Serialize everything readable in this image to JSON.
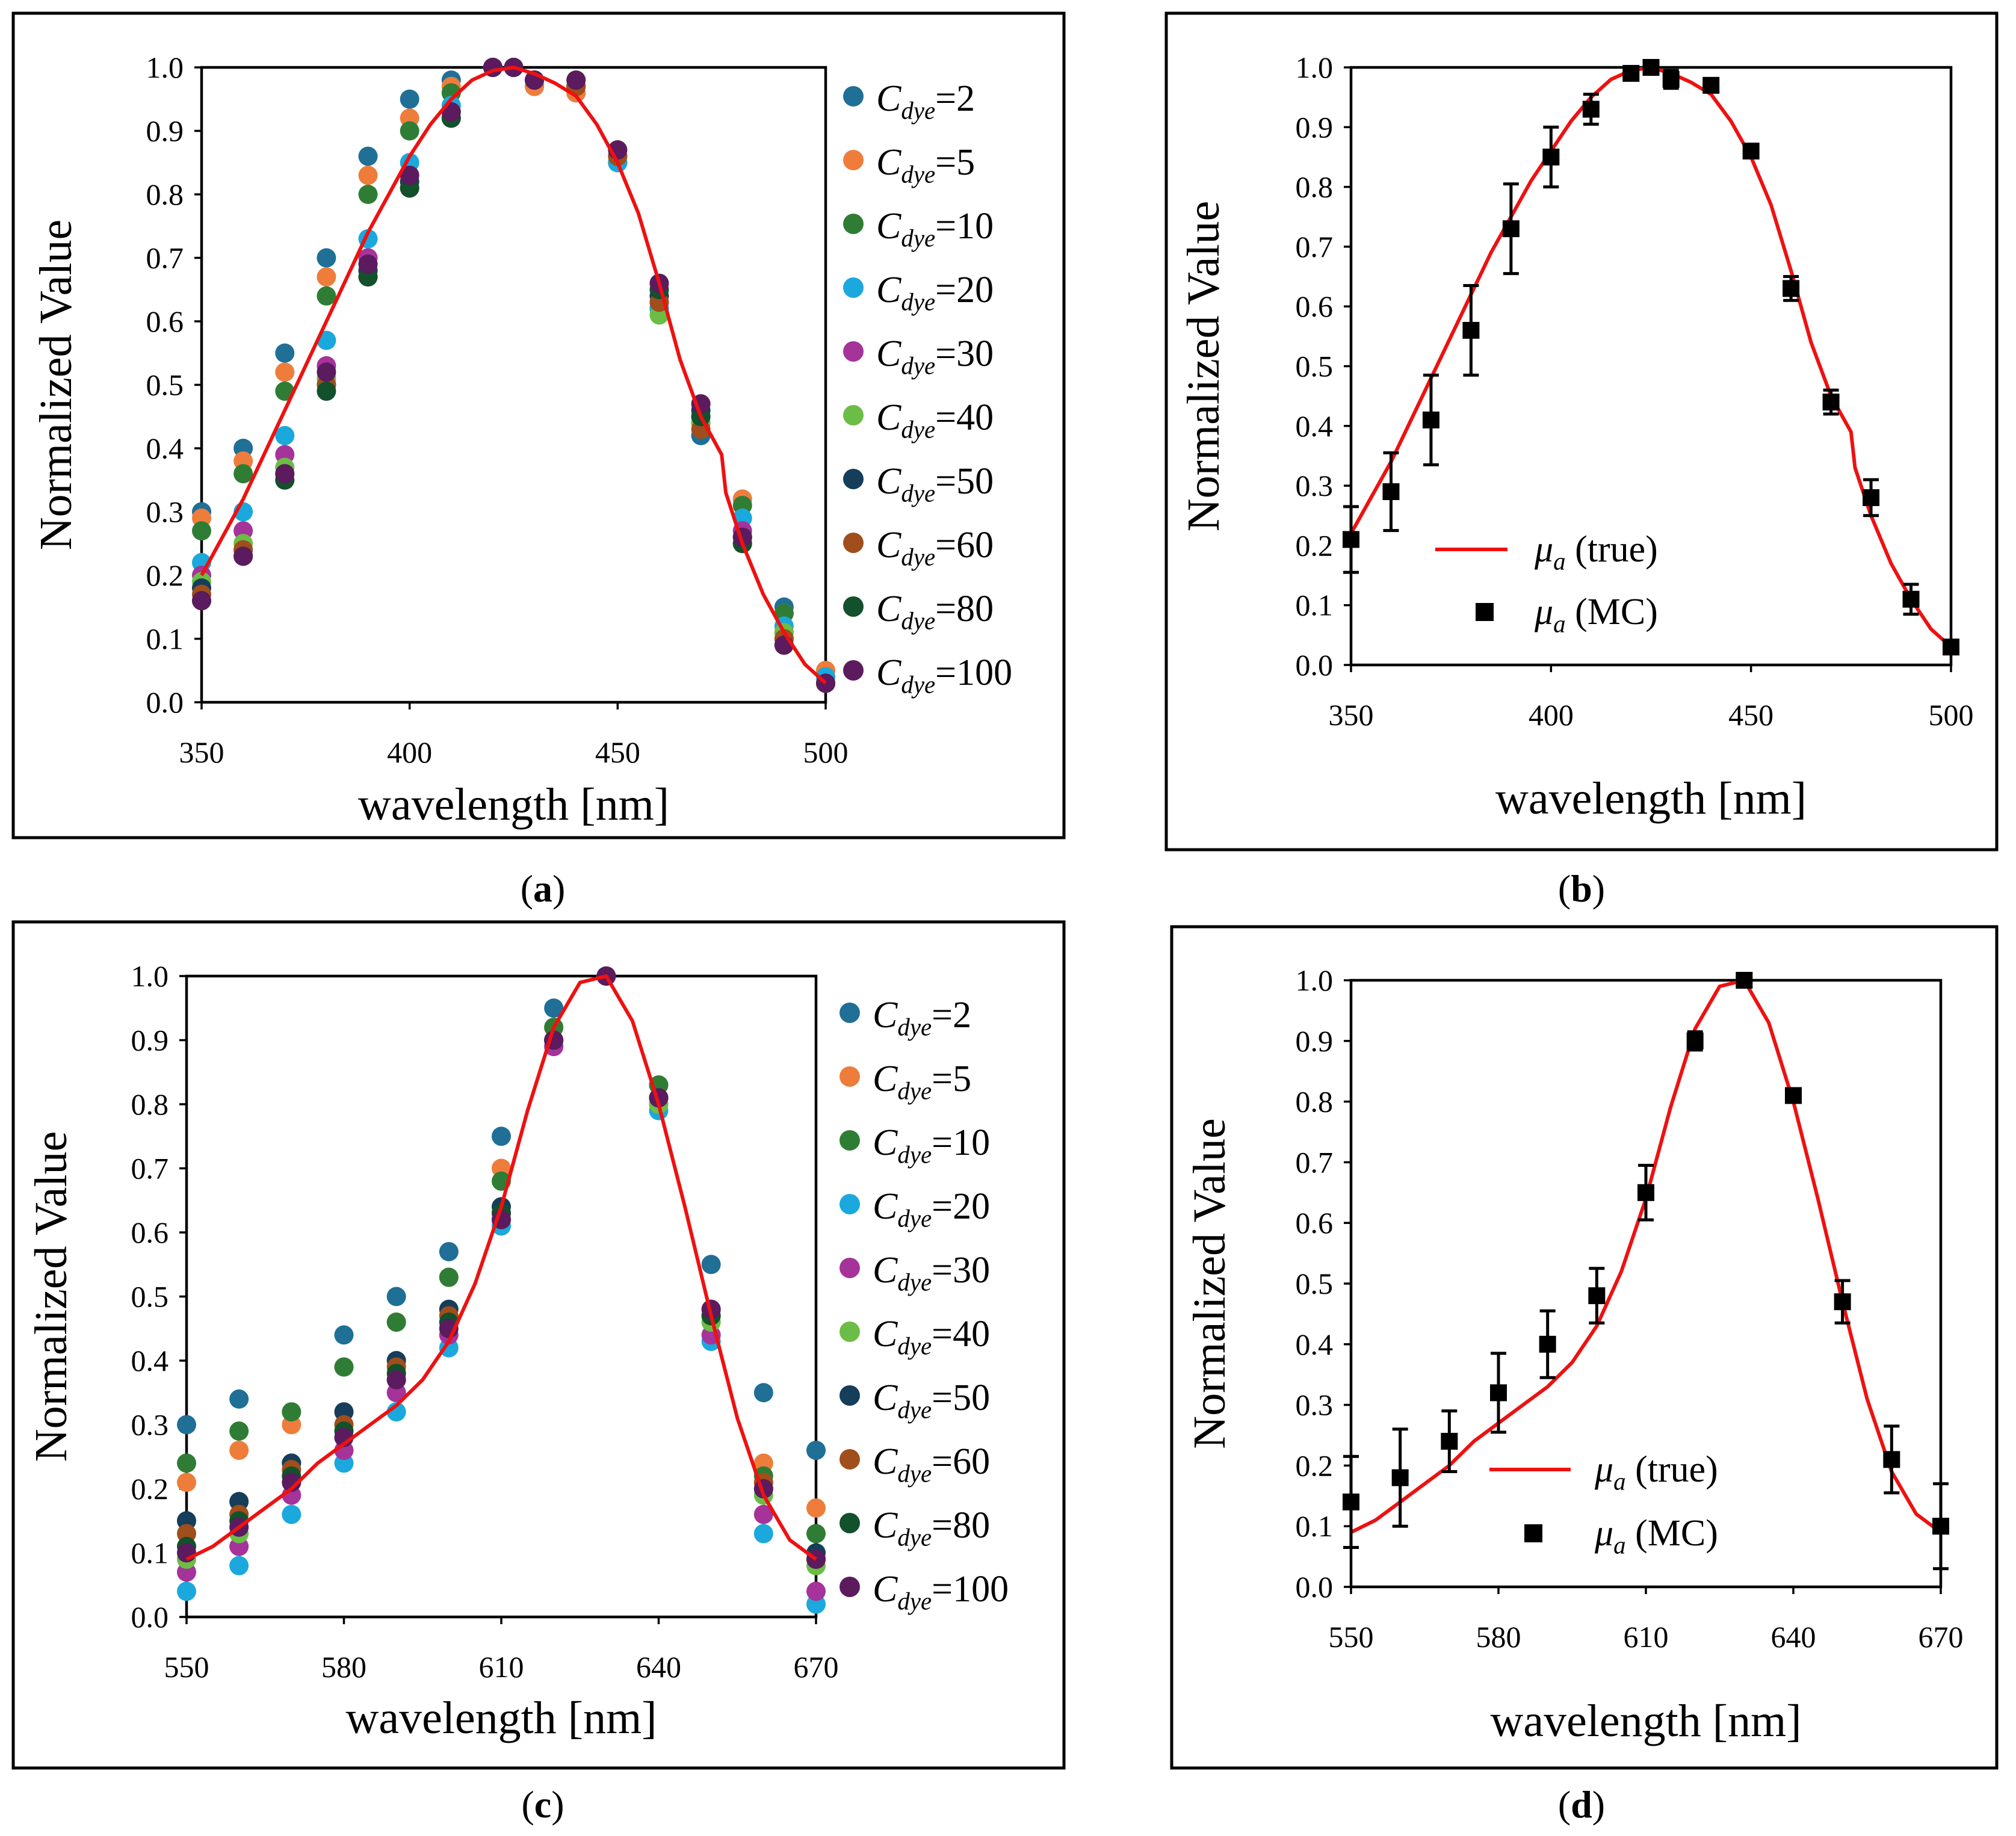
{
  "colors": {
    "true_curve": "#ee1111",
    "mc_marker": "#000000",
    "cdye": [
      "#1f6f96",
      "#ee7d3c",
      "#2f7d35",
      "#1ba8dd",
      "#a5339a",
      "#6cbd45",
      "#163d5a",
      "#a04e1b",
      "#13502c",
      "#5b1b5e"
    ]
  },
  "legend_cdye": {
    "symbol": "C",
    "subscript": "dye",
    "labels": [
      "=2",
      "=5",
      "=10",
      "=20",
      "=30",
      "=40",
      "=50",
      "=60",
      "=80",
      "=100"
    ]
  },
  "legend_mc": {
    "symbol": "μ",
    "subscript": "a",
    "true_label": " (true)",
    "mc_label": " (MC)"
  },
  "chart_data": [
    {
      "panel": "a",
      "caption": "a",
      "type": "scatter",
      "ylabel": "Normalized Value",
      "xlabel": "wavelength [nm]",
      "xlim": [
        350,
        500
      ],
      "ylim": [
        0,
        1
      ],
      "xticks": [
        "350",
        "400",
        "450",
        "500"
      ],
      "yticks": [
        "0.0",
        "0.1",
        "0.2",
        "0.3",
        "0.4",
        "0.5",
        "0.6",
        "0.7",
        "0.8",
        "0.9",
        "1.0"
      ],
      "x": [
        350,
        360,
        370,
        380,
        390,
        400,
        410,
        420,
        425,
        430,
        440,
        450,
        460,
        470,
        480,
        490,
        500
      ],
      "series": [
        {
          "name": "Cdye=2",
          "values": [
            0.3,
            0.4,
            0.55,
            0.7,
            0.86,
            0.95,
            0.98,
            1.0,
            1.0,
            0.97,
            0.96,
            0.85,
            0.62,
            0.42,
            0.32,
            0.15,
            0.05
          ]
        },
        {
          "name": "Cdye=5",
          "values": [
            0.29,
            0.38,
            0.52,
            0.67,
            0.83,
            0.92,
            0.97,
            1.0,
            1.0,
            0.97,
            0.96,
            0.85,
            0.62,
            0.47,
            0.32,
            0.14,
            0.05
          ]
        },
        {
          "name": "Cdye=10",
          "values": [
            0.27,
            0.36,
            0.49,
            0.64,
            0.8,
            0.9,
            0.96,
            1.0,
            1.0,
            0.98,
            0.97,
            0.85,
            0.62,
            0.45,
            0.31,
            0.14,
            0.04
          ]
        },
        {
          "name": "Cdye=20",
          "values": [
            0.22,
            0.3,
            0.42,
            0.57,
            0.73,
            0.85,
            0.94,
            1.0,
            1.0,
            0.98,
            0.97,
            0.85,
            0.62,
            0.45,
            0.29,
            0.12,
            0.04
          ]
        },
        {
          "name": "Cdye=30",
          "values": [
            0.2,
            0.27,
            0.39,
            0.53,
            0.7,
            0.83,
            0.93,
            1.0,
            1.0,
            0.98,
            0.97,
            0.86,
            0.63,
            0.44,
            0.27,
            0.11,
            0.03
          ]
        },
        {
          "name": "Cdye=40",
          "values": [
            0.19,
            0.25,
            0.37,
            0.51,
            0.68,
            0.82,
            0.93,
            1.0,
            1.0,
            0.98,
            0.97,
            0.86,
            0.61,
            0.44,
            0.26,
            0.11,
            0.03
          ]
        },
        {
          "name": "Cdye=50",
          "values": [
            0.18,
            0.24,
            0.36,
            0.5,
            0.68,
            0.82,
            0.92,
            1.0,
            1.0,
            0.98,
            0.97,
            0.86,
            0.64,
            0.46,
            0.26,
            0.1,
            0.03
          ]
        },
        {
          "name": "Cdye=60",
          "values": [
            0.17,
            0.24,
            0.35,
            0.5,
            0.67,
            0.81,
            0.92,
            1.0,
            1.0,
            0.98,
            0.97,
            0.86,
            0.63,
            0.43,
            0.25,
            0.1,
            0.03
          ]
        },
        {
          "name": "Cdye=80",
          "values": [
            0.16,
            0.23,
            0.35,
            0.49,
            0.67,
            0.81,
            0.92,
            1.0,
            1.0,
            0.98,
            0.98,
            0.87,
            0.65,
            0.45,
            0.25,
            0.09,
            0.03
          ]
        },
        {
          "name": "Cdye=100",
          "values": [
            0.16,
            0.23,
            0.36,
            0.52,
            0.69,
            0.83,
            0.93,
            1.0,
            1.0,
            0.98,
            0.98,
            0.87,
            0.66,
            0.47,
            0.26,
            0.09,
            0.03
          ]
        }
      ],
      "true_curve": {
        "name": "μa (true)",
        "x": [
          350,
          355,
          360,
          365,
          370,
          375,
          380,
          385,
          390,
          395,
          400,
          405,
          410,
          415,
          420,
          425,
          430,
          435,
          440,
          445,
          450,
          455,
          460,
          465,
          470,
          475,
          476,
          480,
          485,
          490,
          495,
          500
        ],
        "y": [
          0.2,
          0.26,
          0.32,
          0.39,
          0.46,
          0.53,
          0.6,
          0.67,
          0.74,
          0.8,
          0.86,
          0.91,
          0.95,
          0.98,
          0.995,
          1.0,
          0.99,
          0.975,
          0.955,
          0.91,
          0.85,
          0.77,
          0.66,
          0.54,
          0.45,
          0.39,
          0.33,
          0.25,
          0.17,
          0.11,
          0.06,
          0.03
        ]
      }
    },
    {
      "panel": "b",
      "caption": "b",
      "type": "scatter",
      "ylabel": "Normalized Value",
      "xlabel": "wavelength [nm]",
      "xlim": [
        350,
        500
      ],
      "ylim": [
        0,
        1
      ],
      "xticks": [
        "350",
        "400",
        "450",
        "500"
      ],
      "yticks": [
        "0.0",
        "0.1",
        "0.2",
        "0.3",
        "0.4",
        "0.5",
        "0.6",
        "0.7",
        "0.8",
        "0.9",
        "1.0"
      ],
      "mc": {
        "name": "μa (MC)",
        "x": [
          350,
          360,
          370,
          380,
          390,
          400,
          410,
          420,
          425,
          430,
          440,
          450,
          460,
          470,
          480,
          490,
          500
        ],
        "y": [
          0.21,
          0.29,
          0.41,
          0.56,
          0.73,
          0.85,
          0.93,
          0.99,
          1.0,
          0.98,
          0.97,
          0.86,
          0.63,
          0.44,
          0.28,
          0.11,
          0.03
        ],
        "err": [
          0.055,
          0.065,
          0.075,
          0.075,
          0.075,
          0.05,
          0.025,
          0.01,
          0.008,
          0.015,
          0.01,
          0.008,
          0.02,
          0.02,
          0.03,
          0.025,
          0.005
        ]
      },
      "true_curve": {
        "name": "μa (true)",
        "x": [
          350,
          355,
          360,
          365,
          370,
          375,
          380,
          385,
          390,
          395,
          400,
          405,
          410,
          415,
          420,
          425,
          430,
          435,
          440,
          445,
          450,
          455,
          460,
          465,
          470,
          475,
          476,
          480,
          485,
          490,
          495,
          500
        ],
        "y": [
          0.22,
          0.28,
          0.34,
          0.41,
          0.48,
          0.55,
          0.62,
          0.69,
          0.75,
          0.81,
          0.86,
          0.91,
          0.95,
          0.98,
          0.995,
          1.0,
          0.99,
          0.975,
          0.955,
          0.91,
          0.85,
          0.77,
          0.66,
          0.54,
          0.45,
          0.39,
          0.33,
          0.25,
          0.17,
          0.11,
          0.06,
          0.03
        ]
      }
    },
    {
      "panel": "c",
      "caption": "c",
      "type": "scatter",
      "ylabel": "Normalized Value",
      "xlabel": "wavelength [nm]",
      "xlim": [
        550,
        670
      ],
      "ylim": [
        0,
        1
      ],
      "xticks": [
        "550",
        "580",
        "610",
        "640",
        "670"
      ],
      "yticks": [
        "0.0",
        "0.1",
        "0.2",
        "0.3",
        "0.4",
        "0.5",
        "0.6",
        "0.7",
        "0.8",
        "0.9",
        "1.0"
      ],
      "x": [
        550,
        560,
        570,
        580,
        590,
        600,
        610,
        620,
        630,
        640,
        650,
        660,
        670
      ],
      "series": [
        {
          "name": "Cdye=2",
          "values": [
            0.3,
            0.34,
            0.24,
            0.44,
            0.5,
            0.57,
            0.75,
            0.95,
            1.0,
            0.83,
            0.55,
            0.35,
            0.26
          ]
        },
        {
          "name": "Cdye=5",
          "values": [
            0.21,
            0.26,
            0.3,
            0.39,
            0.46,
            0.53,
            0.7,
            0.92,
            1.0,
            0.83,
            0.48,
            0.24,
            0.17
          ]
        },
        {
          "name": "Cdye=10",
          "values": [
            0.24,
            0.29,
            0.32,
            0.39,
            0.46,
            0.53,
            0.68,
            0.92,
            1.0,
            0.83,
            0.47,
            0.22,
            0.13
          ]
        },
        {
          "name": "Cdye=20",
          "values": [
            0.04,
            0.08,
            0.16,
            0.24,
            0.32,
            0.42,
            0.61,
            0.89,
            1.0,
            0.79,
            0.43,
            0.13,
            0.02
          ]
        },
        {
          "name": "Cdye=30",
          "values": [
            0.07,
            0.11,
            0.19,
            0.26,
            0.35,
            0.44,
            0.62,
            0.89,
            1.0,
            0.8,
            0.44,
            0.16,
            0.04
          ]
        },
        {
          "name": "Cdye=40",
          "values": [
            0.09,
            0.13,
            0.21,
            0.28,
            0.37,
            0.46,
            0.62,
            0.9,
            1.0,
            0.8,
            0.46,
            0.19,
            0.08
          ]
        },
        {
          "name": "Cdye=50",
          "values": [
            0.15,
            0.18,
            0.24,
            0.32,
            0.4,
            0.48,
            0.64,
            0.9,
            1.0,
            0.81,
            0.48,
            0.2,
            0.1
          ]
        },
        {
          "name": "Cdye=60",
          "values": [
            0.13,
            0.16,
            0.23,
            0.3,
            0.39,
            0.47,
            0.63,
            0.9,
            1.0,
            0.81,
            0.47,
            0.21,
            0.09
          ]
        },
        {
          "name": "Cdye=80",
          "values": [
            0.11,
            0.15,
            0.22,
            0.29,
            0.38,
            0.46,
            0.63,
            0.9,
            1.0,
            0.81,
            0.47,
            0.2,
            0.09
          ]
        },
        {
          "name": "Cdye=100",
          "values": [
            0.1,
            0.14,
            0.21,
            0.28,
            0.37,
            0.45,
            0.62,
            0.9,
            1.0,
            0.81,
            0.48,
            0.2,
            0.09
          ]
        }
      ],
      "true_curve": {
        "name": "μa (true)",
        "x": [
          550,
          555,
          560,
          565,
          570,
          575,
          580,
          585,
          590,
          595,
          600,
          605,
          610,
          615,
          620,
          625,
          630,
          635,
          640,
          645,
          650,
          655,
          660,
          665,
          670
        ],
        "y": [
          0.09,
          0.11,
          0.14,
          0.17,
          0.2,
          0.24,
          0.27,
          0.3,
          0.33,
          0.37,
          0.43,
          0.52,
          0.64,
          0.79,
          0.92,
          0.99,
          1.0,
          0.93,
          0.8,
          0.64,
          0.47,
          0.31,
          0.19,
          0.12,
          0.09
        ]
      }
    },
    {
      "panel": "d",
      "caption": "d",
      "type": "scatter",
      "ylabel": "Normalized Value",
      "xlabel": "wavelength [nm]",
      "xlim": [
        550,
        670
      ],
      "ylim": [
        0,
        1
      ],
      "xticks": [
        "550",
        "580",
        "610",
        "640",
        "670"
      ],
      "yticks": [
        "0.0",
        "0.1",
        "0.2",
        "0.3",
        "0.4",
        "0.5",
        "0.6",
        "0.7",
        "0.8",
        "0.9",
        "1.0"
      ],
      "mc": {
        "name": "μa (MC)",
        "x": [
          550,
          560,
          570,
          580,
          590,
          600,
          610,
          620,
          630,
          640,
          650,
          660,
          670
        ],
        "y": [
          0.14,
          0.18,
          0.24,
          0.32,
          0.4,
          0.48,
          0.65,
          0.9,
          1.0,
          0.81,
          0.47,
          0.21,
          0.1
        ],
        "err": [
          0.075,
          0.08,
          0.05,
          0.065,
          0.055,
          0.045,
          0.045,
          0.015,
          0.005,
          0.01,
          0.035,
          0.055,
          0.07
        ]
      },
      "true_curve": {
        "name": "μa (true)",
        "x": [
          550,
          555,
          560,
          565,
          570,
          575,
          580,
          585,
          590,
          595,
          600,
          605,
          610,
          615,
          620,
          625,
          630,
          635,
          640,
          645,
          650,
          655,
          660,
          665,
          670
        ],
        "y": [
          0.09,
          0.11,
          0.14,
          0.17,
          0.2,
          0.24,
          0.27,
          0.3,
          0.33,
          0.37,
          0.43,
          0.52,
          0.64,
          0.79,
          0.92,
          0.99,
          1.0,
          0.93,
          0.8,
          0.64,
          0.47,
          0.31,
          0.19,
          0.12,
          0.09
        ]
      }
    }
  ]
}
